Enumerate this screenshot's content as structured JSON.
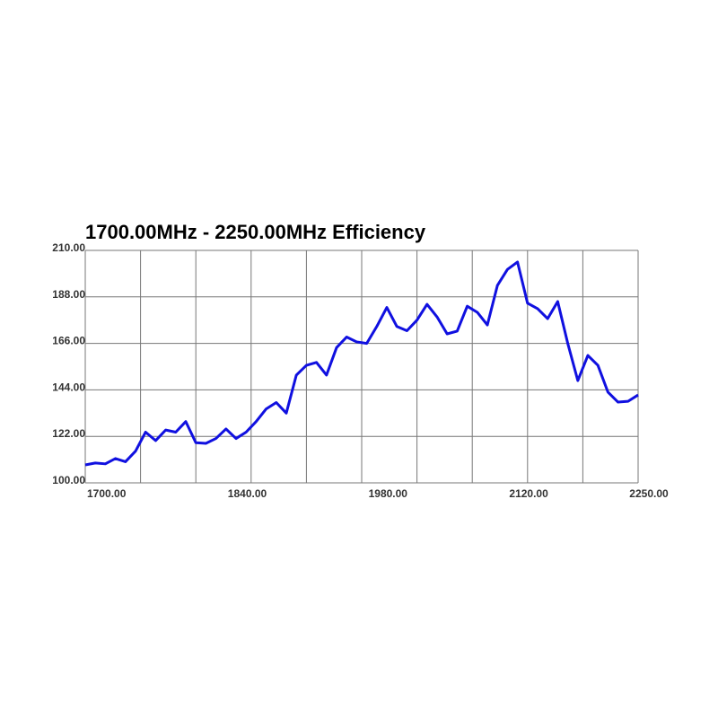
{
  "chart_data": {
    "type": "line",
    "title": "1700.00MHz - 2250.00MHz Efficiency",
    "x": [
      1700,
      1710,
      1720,
      1730,
      1740,
      1750,
      1760,
      1770,
      1780,
      1790,
      1800,
      1810,
      1820,
      1830,
      1840,
      1850,
      1860,
      1870,
      1880,
      1890,
      1900,
      1910,
      1920,
      1930,
      1940,
      1950,
      1960,
      1970,
      1980,
      1990,
      2000,
      2010,
      2020,
      2030,
      2040,
      2050,
      2060,
      2070,
      2080,
      2090,
      2100,
      2110,
      2120,
      2130,
      2140,
      2150,
      2160,
      2170,
      2180,
      2190,
      2200,
      2210,
      2220,
      2230,
      2240,
      2250
    ],
    "series": [
      {
        "color": "#1010e0",
        "values": [
          108.5,
          109.4,
          109,
          111.5,
          110,
          115,
          124,
          120,
          125,
          124,
          129,
          119,
          118.7,
          121,
          125.5,
          121,
          124,
          129,
          135,
          138,
          133,
          151,
          155.6,
          157,
          151,
          164,
          169,
          166.7,
          166,
          174,
          183,
          174,
          172,
          177,
          184.5,
          178.5,
          170.5,
          171.8,
          183.6,
          180.7,
          174.7,
          193.4,
          201,
          204.5,
          185,
          182.4,
          177.7,
          185.8,
          166,
          148.4,
          160.3,
          155.6,
          142.9,
          138.2,
          138.6,
          141.6
        ]
      }
    ],
    "xlim": [
      1700,
      2250
    ],
    "xticks": [
      {
        "value": 1700,
        "label": "1700.00"
      },
      {
        "value": 1840,
        "label": "1840.00"
      },
      {
        "value": 1980,
        "label": "1980.00"
      },
      {
        "value": 2120,
        "label": "2120.00"
      },
      {
        "value": 2250,
        "label": "2250.00"
      }
    ],
    "xgrid": [
      1700,
      1755,
      1810,
      1865,
      1920,
      1975,
      2030,
      2085,
      2140,
      2195,
      2250
    ],
    "ylim": [
      100,
      210
    ],
    "yticks": [
      {
        "value": 100,
        "label": "100.00"
      },
      {
        "value": 122,
        "label": "122.00"
      },
      {
        "value": 144,
        "label": "144.00"
      },
      {
        "value": 166,
        "label": "166.00"
      },
      {
        "value": 188,
        "label": "188.00"
      },
      {
        "value": 210,
        "label": "210.00"
      }
    ],
    "grid": true
  }
}
